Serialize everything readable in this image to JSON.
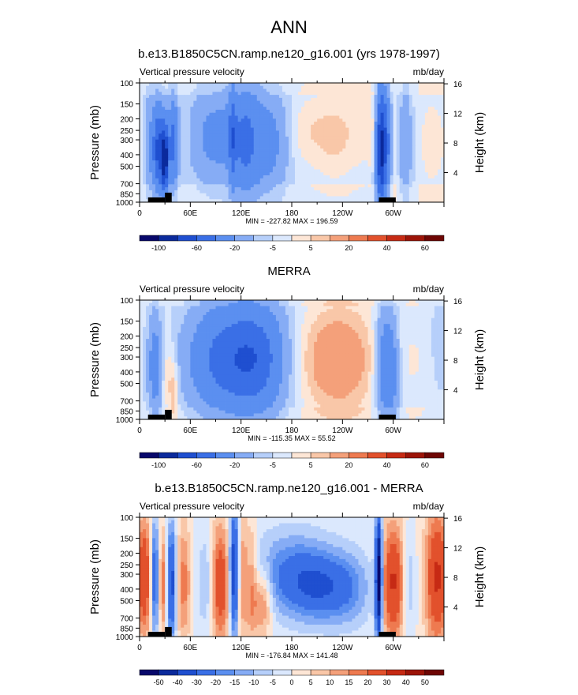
{
  "figure": {
    "title": "ANN"
  },
  "chart_data": [
    {
      "type": "heatmap",
      "title": "b.e13.B1850C5CN.ramp.ne120_g16.001 (yrs 1978-1997)",
      "left_string": "Vertical pressure velocity",
      "right_string": "mb/day",
      "ylabel": "Pressure (mb)",
      "ylabel_right": "Height (km)",
      "y_ticks": [
        "100",
        "150",
        "200",
        "250",
        "300",
        "400",
        "500",
        "700",
        "850",
        "1000"
      ],
      "y_right_ticks": [
        "16",
        "12",
        "8",
        "4"
      ],
      "x_ticks": [
        "0",
        "60E",
        "120E",
        "180",
        "120W",
        "60W"
      ],
      "min": "-227.82",
      "max": "196.59",
      "minmax_text": "MIN = -227.82  MAX = 196.59",
      "colorbar_levels": [
        "-100",
        "-80",
        "-60",
        "-40",
        "-20",
        "-10",
        "-5",
        "0",
        "5",
        "10",
        "20",
        "30",
        "40",
        "50",
        "60"
      ],
      "colorbar_labels": [
        "-100",
        "-60",
        "-20",
        "-5",
        "5",
        "20",
        "40",
        "60"
      ]
    },
    {
      "type": "heatmap",
      "title": "MERRA",
      "left_string": "Vertical pressure velocity",
      "right_string": "mb/day",
      "ylabel": "Pressure (mb)",
      "ylabel_right": "Height (km)",
      "y_ticks": [
        "100",
        "150",
        "200",
        "250",
        "300",
        "400",
        "500",
        "700",
        "850",
        "1000"
      ],
      "y_right_ticks": [
        "16",
        "12",
        "8",
        "4"
      ],
      "x_ticks": [
        "0",
        "60E",
        "120E",
        "180",
        "120W",
        "60W"
      ],
      "min": "-115.35",
      "max": "55.52",
      "minmax_text": "MIN = -115.35  MAX = 55.52",
      "colorbar_levels": [
        "-100",
        "-80",
        "-60",
        "-40",
        "-20",
        "-10",
        "-5",
        "0",
        "5",
        "10",
        "20",
        "30",
        "40",
        "50",
        "60"
      ],
      "colorbar_labels": [
        "-100",
        "-60",
        "-20",
        "-5",
        "5",
        "20",
        "40",
        "60"
      ]
    },
    {
      "type": "heatmap",
      "title": "b.e13.B1850C5CN.ramp.ne120_g16.001 - MERRA",
      "left_string": "Vertical pressure velocity",
      "right_string": "mb/day",
      "ylabel": "Pressure (mb)",
      "ylabel_right": "Height (km)",
      "y_ticks": [
        "100",
        "150",
        "200",
        "250",
        "300",
        "400",
        "500",
        "700",
        "850",
        "1000"
      ],
      "y_right_ticks": [
        "16",
        "12",
        "8",
        "4"
      ],
      "x_ticks": [
        "0",
        "60E",
        "120E",
        "180",
        "120W",
        "60W"
      ],
      "min": "-176.84",
      "max": "141.48",
      "minmax_text": "MIN = -176.84  MAX = 141.48",
      "colorbar_levels": [
        "-50",
        "-40",
        "-30",
        "-20",
        "-15",
        "-10",
        "-5",
        "0",
        "5",
        "10",
        "15",
        "20",
        "30",
        "40",
        "50"
      ],
      "colorbar_labels": [
        "-50",
        "-40",
        "-30",
        "-20",
        "-15",
        "-10",
        "-5",
        "0",
        "5",
        "10",
        "15",
        "20",
        "30",
        "40",
        "50"
      ]
    }
  ],
  "colors": {
    "palette": [
      "#08086b",
      "#0b2a9c",
      "#1f4fd0",
      "#3a6fe6",
      "#5b8ff0",
      "#86acf5",
      "#b6cffa",
      "#dbe8fd",
      "#fde6d6",
      "#f9c7a8",
      "#f4a07a",
      "#ee7a50",
      "#e2512c",
      "#c62a14",
      "#9c1408",
      "#6e0604"
    ],
    "terrain": "#000000"
  }
}
